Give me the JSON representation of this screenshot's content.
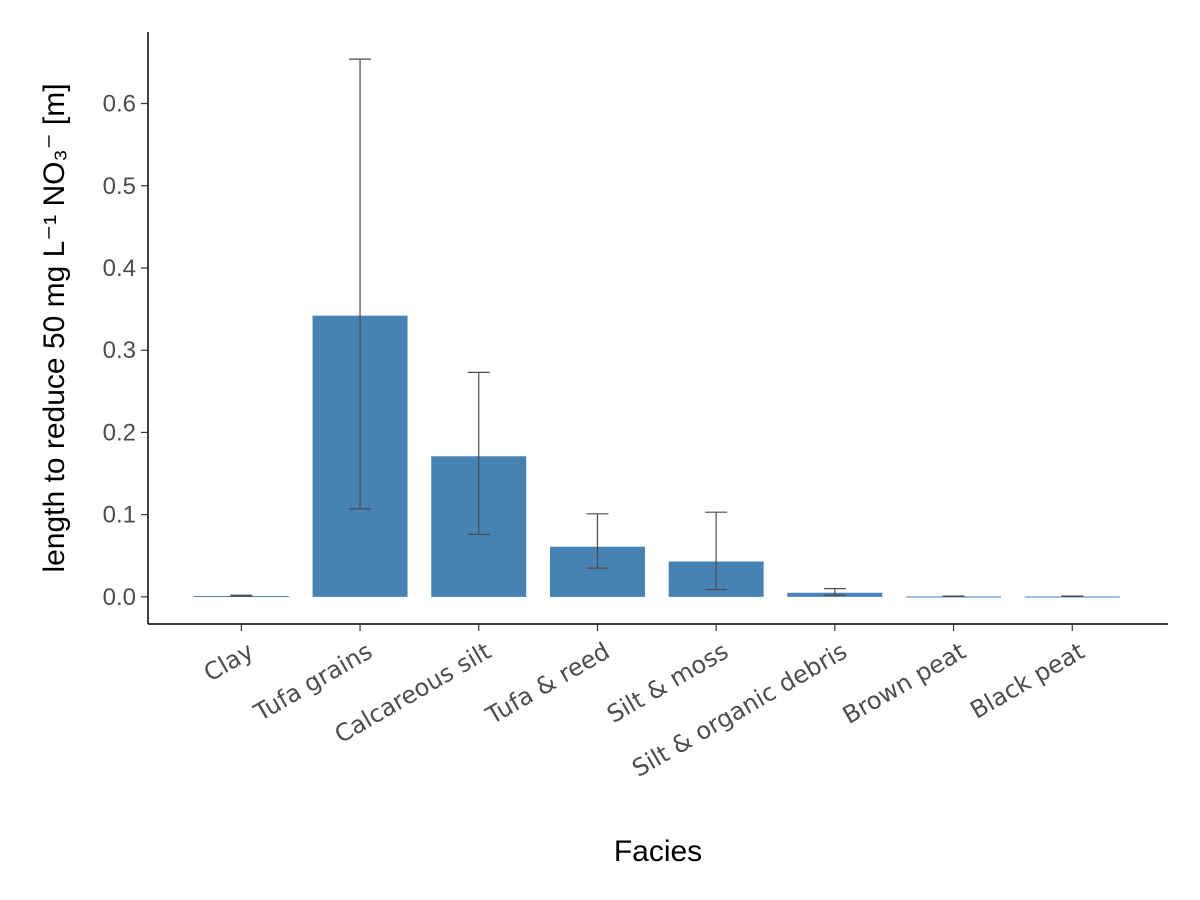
{
  "chart_data": {
    "type": "bar",
    "title": "",
    "xlabel": "Facies",
    "ylabel": "length to reduce 50 mg L⁻¹ NO₃⁻ [m]",
    "categories": [
      "Clay",
      "Tufa grains",
      "Calcareous silt",
      "Tufa & reed",
      "Silt & moss",
      "Silt & organic debris",
      "Brown peat",
      "Black peat"
    ],
    "values": [
      0.001,
      0.342,
      0.171,
      0.061,
      0.043,
      0.005,
      0.0005,
      0.0005
    ],
    "error_low": [
      0.001,
      0.107,
      0.076,
      0.035,
      0.009,
      0.002,
      0.0005,
      0.0005
    ],
    "error_high": [
      0.002,
      0.654,
      0.273,
      0.101,
      0.103,
      0.01,
      0.001,
      0.001
    ],
    "yticks": [
      0.0,
      0.1,
      0.2,
      0.3,
      0.4,
      0.5,
      0.6
    ],
    "ytick_labels": [
      "0.0",
      "0.1",
      "0.2",
      "0.3",
      "0.4",
      "0.5",
      "0.6"
    ],
    "ylim": [
      -0.033,
      0.687
    ],
    "grid": false,
    "bar_color": "#4682b4",
    "error_color": "#4d4d4d",
    "axis_color": "#000000"
  }
}
